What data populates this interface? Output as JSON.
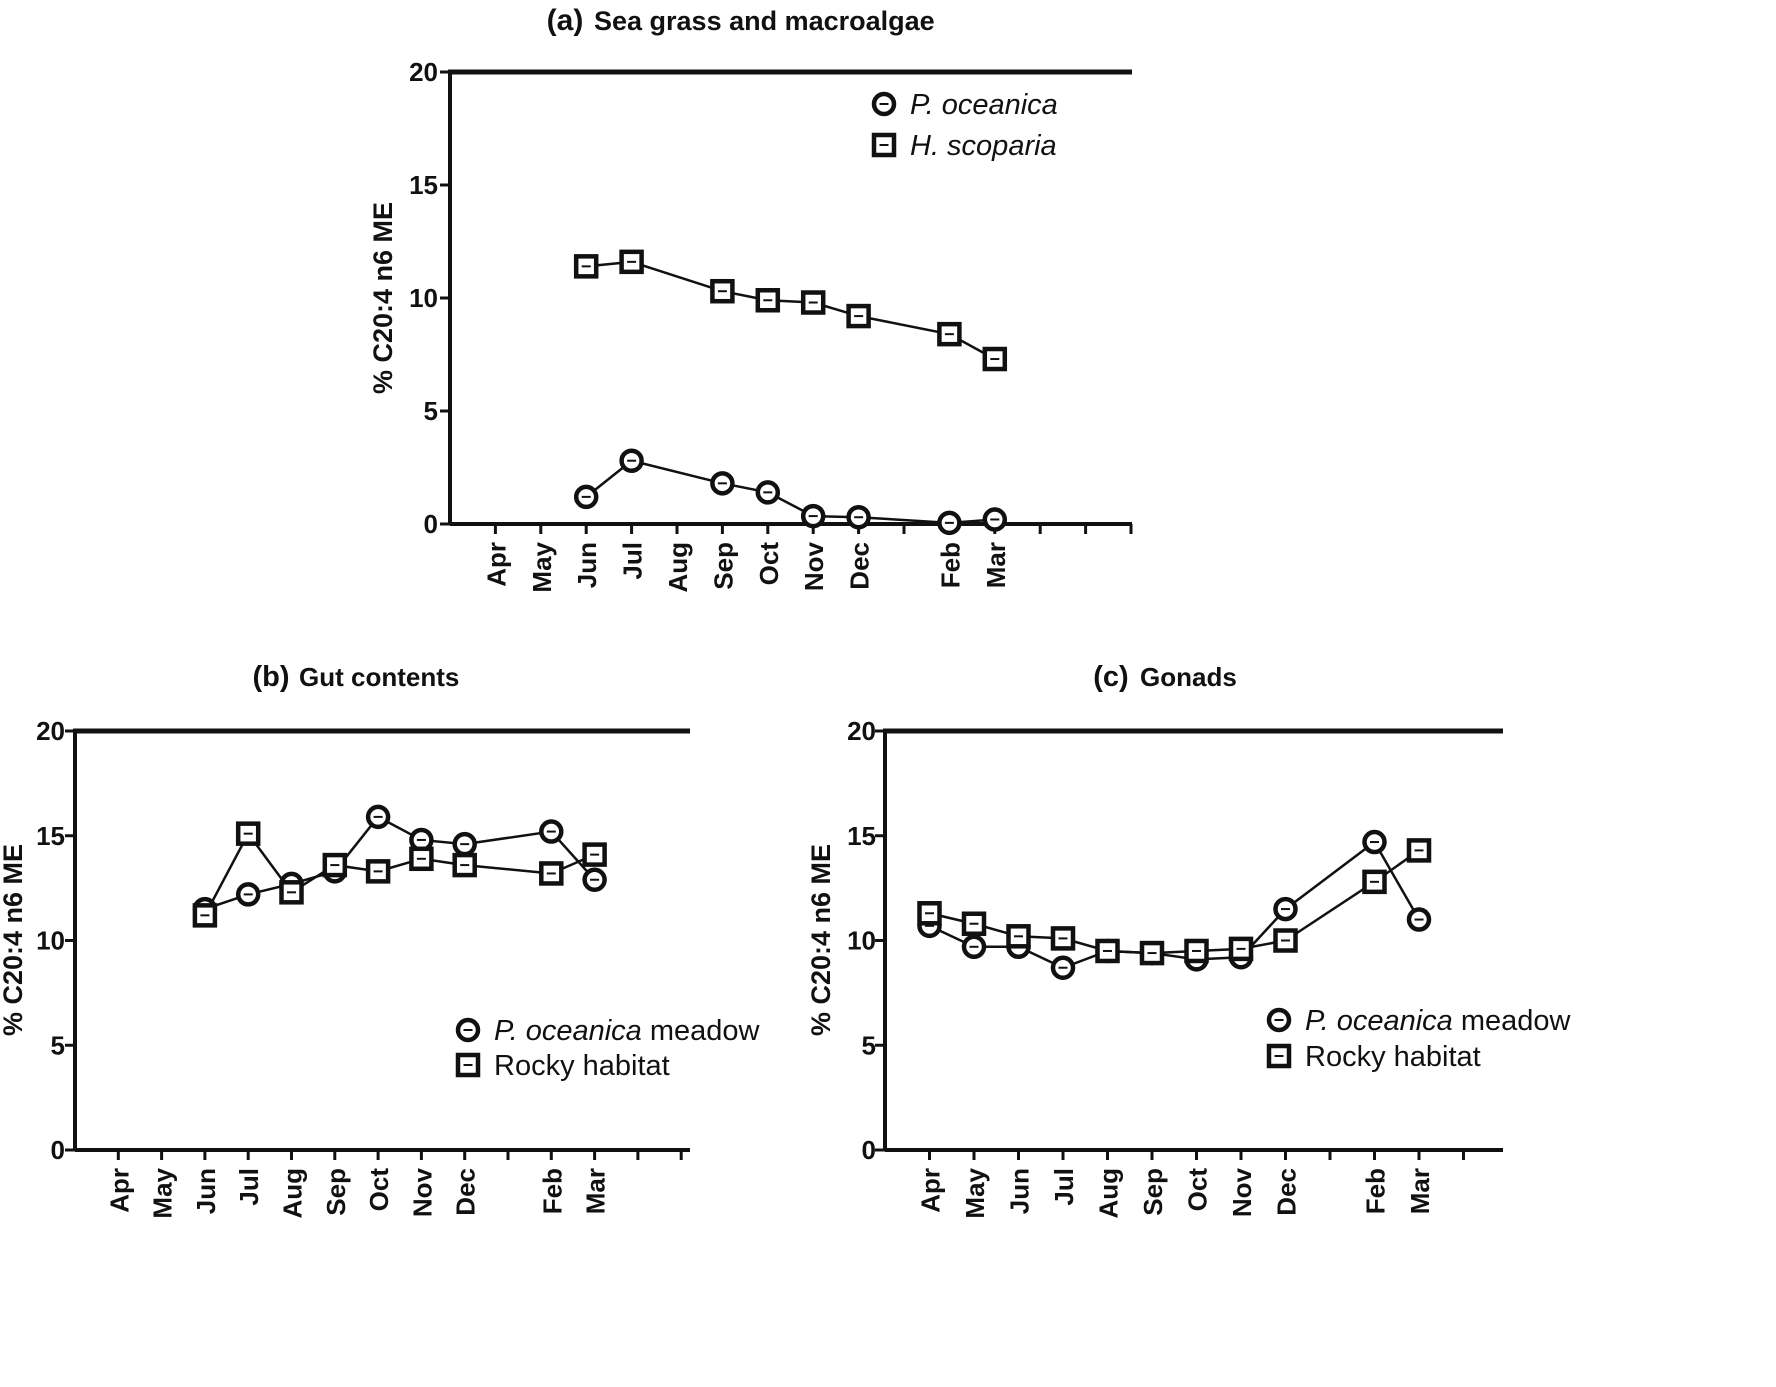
{
  "chart_data": [
    {
      "type": "line",
      "panel": "(a)",
      "title": "Sea grass and macroalgae",
      "ylabel": "% C20:4 n6 ME",
      "ylim": [
        0,
        20
      ],
      "yticks": [
        "0",
        "5",
        "10",
        "15",
        "20"
      ],
      "xlabels": [
        "Apr",
        "May",
        "Jun",
        "Jul",
        "Aug",
        "Sep",
        "Oct",
        "Nov",
        "Dec",
        "Feb",
        "Mar"
      ],
      "series": [
        {
          "name": "P. oceanica",
          "marker": "circle",
          "points": [
            [
              "Jun",
              1.2
            ],
            [
              "Jul",
              2.8
            ],
            [
              "Sep",
              1.8
            ],
            [
              "Oct",
              1.4
            ],
            [
              "Nov",
              0.35
            ],
            [
              "Dec",
              0.3
            ],
            [
              "Feb",
              0.05
            ],
            [
              "Mar",
              0.2
            ]
          ]
        },
        {
          "name": "H. scoparia",
          "marker": "square",
          "points": [
            [
              "Jun",
              11.4
            ],
            [
              "Jul",
              11.6
            ],
            [
              "Sep",
              10.3
            ],
            [
              "Oct",
              9.9
            ],
            [
              "Nov",
              9.8
            ],
            [
              "Dec",
              9.2
            ],
            [
              "Feb",
              8.4
            ],
            [
              "Mar",
              7.3
            ]
          ]
        }
      ],
      "legend_position": "top-right"
    },
    {
      "type": "line",
      "panel": "(b)",
      "title": "Gut contents",
      "ylabel": "% C20:4 n6 ME",
      "ylim": [
        0,
        20
      ],
      "yticks": [
        "0",
        "5",
        "10",
        "15",
        "20"
      ],
      "xlabels": [
        "Apr",
        "May",
        "Jun",
        "Jul",
        "Aug",
        "Sep",
        "Oct",
        "Nov",
        "Dec",
        "Feb",
        "Mar"
      ],
      "series": [
        {
          "name": "P. oceanica meadow",
          "marker": "circle",
          "points": [
            [
              "Jun",
              11.5
            ],
            [
              "Jul",
              12.2
            ],
            [
              "Aug",
              12.7
            ],
            [
              "Sep",
              13.3
            ],
            [
              "Oct",
              15.9
            ],
            [
              "Nov",
              14.8
            ],
            [
              "Dec",
              14.6
            ],
            [
              "Feb",
              15.2
            ],
            [
              "Mar",
              12.9
            ]
          ]
        },
        {
          "name": "Rocky habitat",
          "marker": "square",
          "points": [
            [
              "Jun",
              11.2
            ],
            [
              "Jul",
              15.1
            ],
            [
              "Aug",
              12.3
            ],
            [
              "Sep",
              13.6
            ],
            [
              "Oct",
              13.3
            ],
            [
              "Nov",
              13.9
            ],
            [
              "Dec",
              13.6
            ],
            [
              "Feb",
              13.2
            ],
            [
              "Mar",
              14.1
            ]
          ]
        }
      ],
      "legend_position": "bottom-right"
    },
    {
      "type": "line",
      "panel": "(c)",
      "title": "Gonads",
      "ylabel": "% C20:4 n6 ME",
      "ylim": [
        0,
        20
      ],
      "yticks": [
        "0",
        "5",
        "10",
        "15",
        "20"
      ],
      "xlabels": [
        "Apr",
        "May",
        "Jun",
        "Jul",
        "Aug",
        "Sep",
        "Oct",
        "Nov",
        "Dec",
        "Feb",
        "Mar"
      ],
      "series": [
        {
          "name": "P. oceanica meadow",
          "marker": "circle",
          "points": [
            [
              "Apr",
              10.7
            ],
            [
              "May",
              9.7
            ],
            [
              "Jun",
              9.7
            ],
            [
              "Jul",
              8.7
            ],
            [
              "Aug",
              9.5
            ],
            [
              "Sep",
              9.4
            ],
            [
              "Oct",
              9.1
            ],
            [
              "Nov",
              9.2
            ],
            [
              "Dec",
              11.5
            ],
            [
              "Feb",
              14.7
            ],
            [
              "Mar",
              11.0
            ]
          ]
        },
        {
          "name": "Rocky habitat",
          "marker": "square",
          "points": [
            [
              "Apr",
              11.3
            ],
            [
              "May",
              10.8
            ],
            [
              "Jun",
              10.2
            ],
            [
              "Jul",
              10.1
            ],
            [
              "Aug",
              9.5
            ],
            [
              "Sep",
              9.4
            ],
            [
              "Oct",
              9.5
            ],
            [
              "Nov",
              9.6
            ],
            [
              "Dec",
              10.0
            ],
            [
              "Feb",
              12.8
            ],
            [
              "Mar",
              14.3
            ]
          ]
        }
      ],
      "legend_position": "bottom-right"
    }
  ]
}
